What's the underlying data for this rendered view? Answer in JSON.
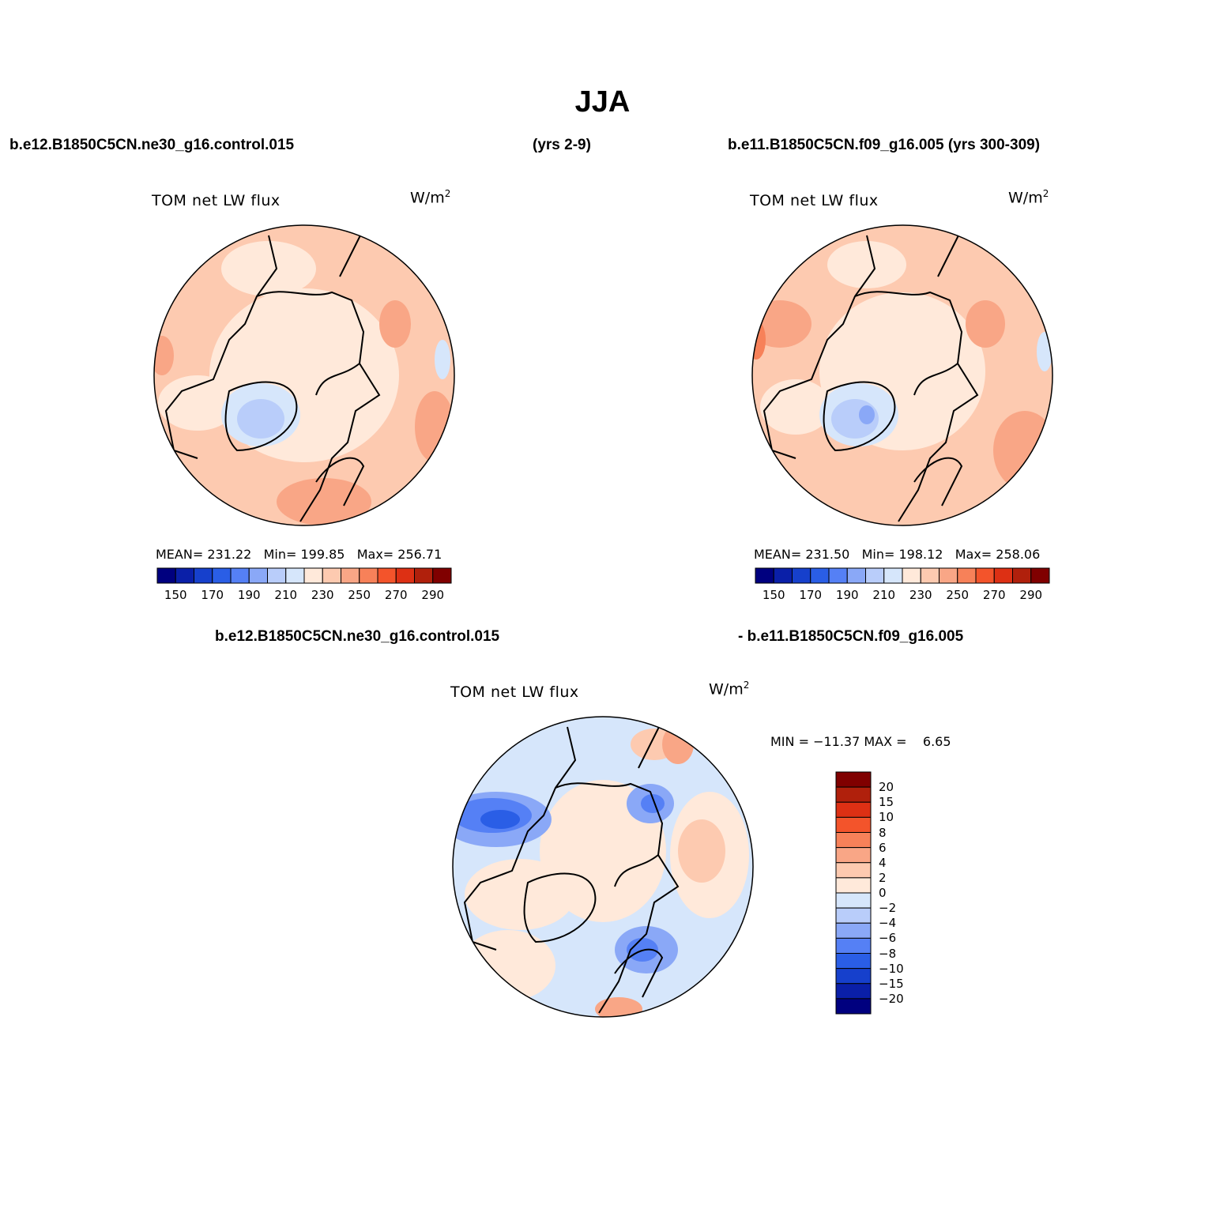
{
  "title": "JJA",
  "case_left": "b.e12.B1850C5CN.ne30_g16.control.015",
  "case_left_years": "(yrs 2-9)",
  "case_right": "b.e11.B1850C5CN.f09_g16.005 (yrs 300-309)",
  "diff_left": "b.e12.B1850C5CN.ne30_g16.control.015",
  "diff_right": "- b.e11.B1850C5CN.f09_g16.005",
  "panels": [
    {
      "variable": "TOM net LW flux",
      "units_base": "W/m",
      "units_exp": "2",
      "mean_label": "MEAN=",
      "mean": "231.22",
      "min_label": "Min=",
      "min": "199.85",
      "max_label": "Max=",
      "max": "256.71"
    },
    {
      "variable": "TOM net LW flux",
      "units_base": "W/m",
      "units_exp": "2",
      "mean_label": "MEAN=",
      "mean": "231.50",
      "min_label": "Min=",
      "min": "198.12",
      "max_label": "Max=",
      "max": "258.06"
    }
  ],
  "diff_panel": {
    "variable": "TOM net LW flux",
    "units_base": "W/m",
    "units_exp": "2",
    "minmax_text": "MIN = −11.37 MAX =    6.65"
  },
  "abs_colorbar": {
    "colors": [
      "#00007f",
      "#0a1fa8",
      "#1640cc",
      "#2a5ee6",
      "#5580f5",
      "#8aa8f7",
      "#b9cdfa",
      "#d6e6fb",
      "#ffe9da",
      "#fdcab0",
      "#f9a686",
      "#f78159",
      "#f3542b",
      "#dd3014",
      "#b0200c",
      "#800000"
    ],
    "labels": [
      "150",
      "170",
      "190",
      "210",
      "230",
      "250",
      "270",
      "290"
    ]
  },
  "diff_colorbar": {
    "colors": [
      "#800000",
      "#b0200c",
      "#dd3014",
      "#f3542b",
      "#f78159",
      "#f9a686",
      "#fdcab0",
      "#ffe9da",
      "#d6e6fb",
      "#b9cdfa",
      "#8aa8f7",
      "#5580f5",
      "#2a5ee6",
      "#1640cc",
      "#0a1fa8",
      "#00007f"
    ],
    "labels": [
      "20",
      "15",
      "10",
      "8",
      "6",
      "4",
      "2",
      "0",
      "−2",
      "−4",
      "−6",
      "−8",
      "−10",
      "−15",
      "−20"
    ]
  }
}
